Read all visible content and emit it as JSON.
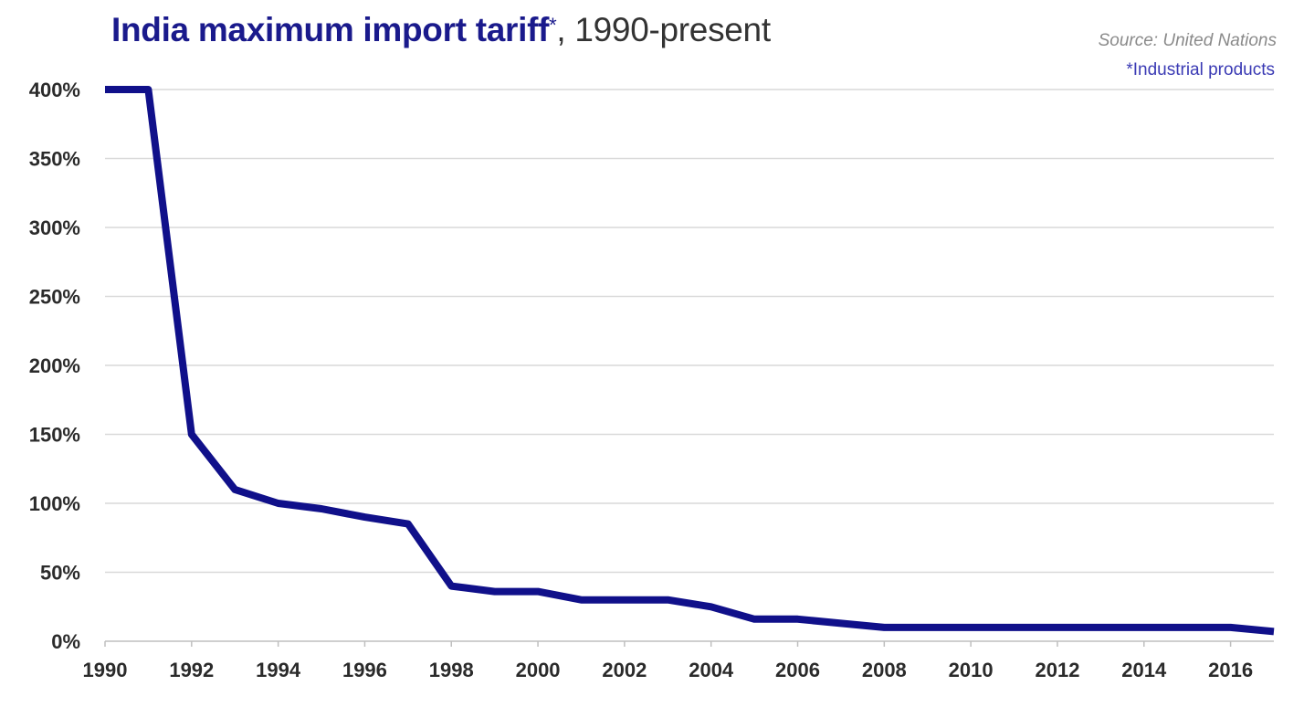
{
  "title_main": "India maximum import tariff",
  "title_asterisk": "*",
  "title_rest": ", 1990-present",
  "source_note": "Source: United Nations",
  "footnote": "*Industrial products",
  "colors": {
    "line": "#10108a",
    "grid": "#d9d9d9",
    "title": "#1a1a8c"
  },
  "chart_data": {
    "type": "line",
    "title": "India maximum import tariff*, 1990-present",
    "xlabel": "",
    "ylabel": "",
    "xlim": [
      1990,
      2017
    ],
    "ylim": [
      0,
      400
    ],
    "x_ticks": [
      1990,
      1992,
      1994,
      1996,
      1998,
      2000,
      2002,
      2004,
      2006,
      2008,
      2010,
      2012,
      2014,
      2016
    ],
    "y_ticks": [
      0,
      50,
      100,
      150,
      200,
      250,
      300,
      350,
      400
    ],
    "y_tick_labels": [
      "0%",
      "50%",
      "100%",
      "150%",
      "200%",
      "250%",
      "300%",
      "350%",
      "400%"
    ],
    "grid": "horizontal",
    "series": [
      {
        "x": [
          1990,
          1991,
          1992,
          1993,
          1994,
          1995,
          1996,
          1997,
          1998,
          1999,
          2000,
          2001,
          2002,
          2003,
          2004,
          2005,
          2006,
          2007,
          2008,
          2009,
          2010,
          2011,
          2012,
          2013,
          2014,
          2015,
          2016,
          2017
        ],
        "values": [
          400,
          400,
          150,
          110,
          100,
          96,
          90,
          85,
          40,
          36,
          36,
          30,
          30,
          30,
          25,
          16,
          16,
          13,
          10,
          10,
          10,
          10,
          10,
          10,
          10,
          10,
          10,
          7
        ]
      }
    ]
  }
}
